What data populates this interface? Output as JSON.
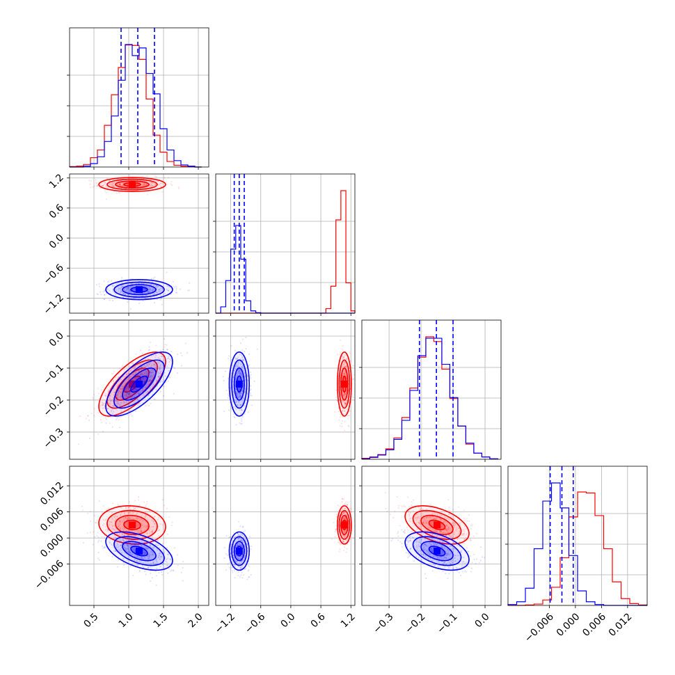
{
  "colors": {
    "series_red": "#ff0000",
    "series_blue": "#0000ff"
  },
  "chart_data": {
    "type": "scatter",
    "title": "",
    "layout": "corner",
    "grid": true,
    "legend": "none",
    "parameters": [
      {
        "id": "p1",
        "label": "",
        "range": [
          0.15,
          2.15
        ],
        "ticks": [
          0.5,
          1.0,
          1.5,
          2.0
        ],
        "tick_labels": [
          "0.5",
          "1.0",
          "1.5",
          "2.0"
        ]
      },
      {
        "id": "p2",
        "label": "",
        "range": [
          -1.5,
          1.28
        ],
        "ticks": [
          -1.2,
          -0.6,
          0.0,
          0.6,
          1.2
        ],
        "tick_labels": [
          "−1.2",
          "−0.6",
          "0.0",
          "0.6",
          "1.2"
        ]
      },
      {
        "id": "p3",
        "label": "",
        "range": [
          -0.385,
          0.05
        ],
        "ticks": [
          -0.3,
          -0.2,
          -0.1,
          0.0
        ],
        "tick_labels": [
          "−0.3",
          "−0.2",
          "−0.1",
          "0.0"
        ]
      },
      {
        "id": "p4",
        "label": "",
        "range": [
          -0.0155,
          0.0165
        ],
        "ticks": [
          -0.006,
          0.0,
          0.006,
          0.012
        ],
        "tick_labels": [
          "−0.006",
          "0.000",
          "0.006",
          "0.012"
        ]
      }
    ],
    "series": [
      {
        "color": "#ff0000",
        "means": [
          1.05,
          1.07,
          -0.15,
          0.003
        ],
        "sds": [
          0.24,
          0.07,
          0.05,
          0.0022
        ],
        "correlations": {
          "p1_p3": 0.7,
          "p3_p4": -0.45,
          "p1_p4": -0.1
        }
      },
      {
        "color": "#0000ff",
        "means": [
          1.15,
          -1.03,
          -0.15,
          -0.003
        ],
        "sds": [
          0.24,
          0.1,
          0.05,
          0.0022
        ],
        "correlations": {
          "p1_p3": 0.7,
          "p3_p4": -0.45,
          "p1_p4": -0.5
        }
      }
    ],
    "histograms": [
      {
        "param": "p1",
        "bins": [
          0.15,
          0.25,
          0.35,
          0.45,
          0.55,
          0.65,
          0.75,
          0.85,
          0.95,
          1.05,
          1.15,
          1.25,
          1.35,
          1.45,
          1.55,
          1.65,
          1.75,
          1.85,
          1.95,
          2.05
        ],
        "red": [
          1,
          2,
          6,
          22,
          40,
          98,
          170,
          234,
          287,
          286,
          253,
          160,
          75,
          35,
          13,
          4,
          2,
          1,
          0
        ],
        "blue": [
          0,
          0,
          2,
          8,
          24,
          60,
          120,
          204,
          288,
          262,
          280,
          220,
          172,
          90,
          40,
          15,
          5,
          2,
          0
        ],
        "quantiles": [
          0.89,
          1.13,
          1.37
        ]
      },
      {
        "param": "p2",
        "bins": [
          -1.5,
          -1.4,
          -1.3,
          -1.2,
          -1.1,
          -1.0,
          -0.9,
          -0.8,
          -0.7,
          -0.6,
          -0.5,
          -0.4,
          -0.3,
          -0.2,
          -0.1,
          0.0,
          0.1,
          0.2,
          0.3,
          0.4,
          0.5,
          0.6,
          0.7,
          0.8,
          0.9,
          1.0,
          1.1,
          1.2,
          1.28
        ],
        "red": [
          0,
          0,
          0,
          0,
          0,
          0,
          0,
          0,
          0,
          0,
          0,
          0,
          0,
          0,
          0,
          0,
          0,
          0,
          0,
          0,
          0,
          0,
          20,
          120,
          415,
          545,
          135,
          10
        ],
        "blue": [
          0,
          28,
          145,
          285,
          390,
          240,
          55,
          10,
          2,
          0,
          0,
          0,
          0,
          0,
          0,
          0,
          0,
          0,
          0,
          0,
          0,
          0,
          0,
          0,
          0,
          0,
          0,
          0
        ],
        "quantiles": [
          -1.13,
          -1.03,
          -0.93
        ]
      },
      {
        "param": "p3",
        "bins": [
          -0.385,
          -0.36,
          -0.335,
          -0.31,
          -0.285,
          -0.26,
          -0.235,
          -0.21,
          -0.185,
          -0.16,
          -0.135,
          -0.11,
          -0.085,
          -0.06,
          -0.035,
          -0.01,
          0.015,
          0.04
        ],
        "red": [
          2,
          5,
          10,
          22,
          45,
          88,
          150,
          215,
          258,
          248,
          190,
          128,
          70,
          32,
          13,
          5,
          1
        ],
        "blue": [
          1,
          4,
          9,
          20,
          42,
          82,
          145,
          218,
          255,
          255,
          200,
          130,
          70,
          34,
          13,
          5,
          1
        ],
        "quantiles": [
          -0.205,
          -0.152,
          -0.1
        ]
      },
      {
        "param": "p4",
        "bins": [
          -0.0155,
          -0.0135,
          -0.0115,
          -0.0095,
          -0.0075,
          -0.0055,
          -0.0035,
          -0.0015,
          0.0005,
          0.0025,
          0.0045,
          0.0065,
          0.0085,
          0.0105,
          0.0125,
          0.0145,
          0.0165
        ],
        "red": [
          0,
          0,
          1,
          3,
          12,
          40,
          105,
          195,
          250,
          248,
          198,
          125,
          52,
          15,
          4,
          1
        ],
        "blue": [
          2,
          8,
          38,
          125,
          230,
          270,
          215,
          110,
          32,
          8,
          2,
          0,
          0,
          0,
          0,
          0
        ],
        "quantiles": [
          -0.0058,
          -0.0031,
          -0.0005
        ]
      }
    ]
  }
}
